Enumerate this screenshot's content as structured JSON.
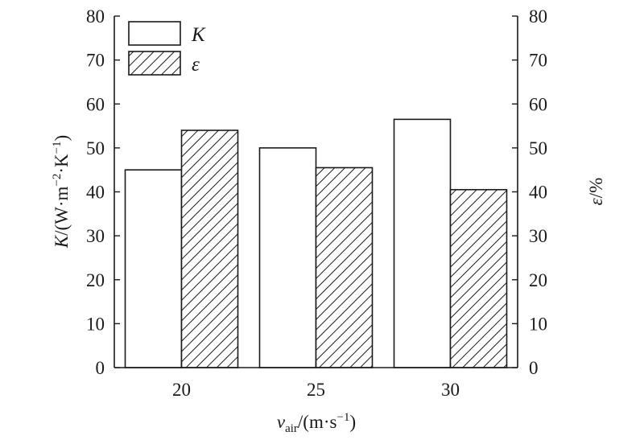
{
  "chart_data": {
    "type": "bar",
    "categories": [
      "20",
      "25",
      "30"
    ],
    "series": [
      {
        "name": "K",
        "values": [
          45,
          50,
          56.5
        ],
        "axis": "left",
        "fill": "#ffffff",
        "pattern": "none"
      },
      {
        "name": "ε",
        "values": [
          54,
          45.5,
          40.5
        ],
        "axis": "right",
        "fill": "#ffffff",
        "pattern": "diagonal-hatch"
      }
    ],
    "xlabel": {
      "main": "v",
      "sub": "air",
      "unit": "/(m·s",
      "sup": "−1",
      "close": ")"
    },
    "ylabel_left": {
      "main": "K",
      "unit": "/(W·m",
      "sup1": "−2",
      "mid": "·K",
      "sup2": "−1",
      "close": ")"
    },
    "ylabel_right": {
      "main": "ε",
      "unit": "/%"
    },
    "ylim_left": [
      0,
      80
    ],
    "ylim_right": [
      0,
      80
    ],
    "yticks_left": [
      "0",
      "10",
      "20",
      "30",
      "40",
      "50",
      "60",
      "70",
      "80"
    ],
    "yticks_right": [
      "0",
      "10",
      "20",
      "30",
      "40",
      "50",
      "60",
      "70",
      "80"
    ],
    "grid": false,
    "legend_position": "top-left",
    "colors": {
      "stroke": "#1a1a1a",
      "background": "#ffffff"
    }
  }
}
